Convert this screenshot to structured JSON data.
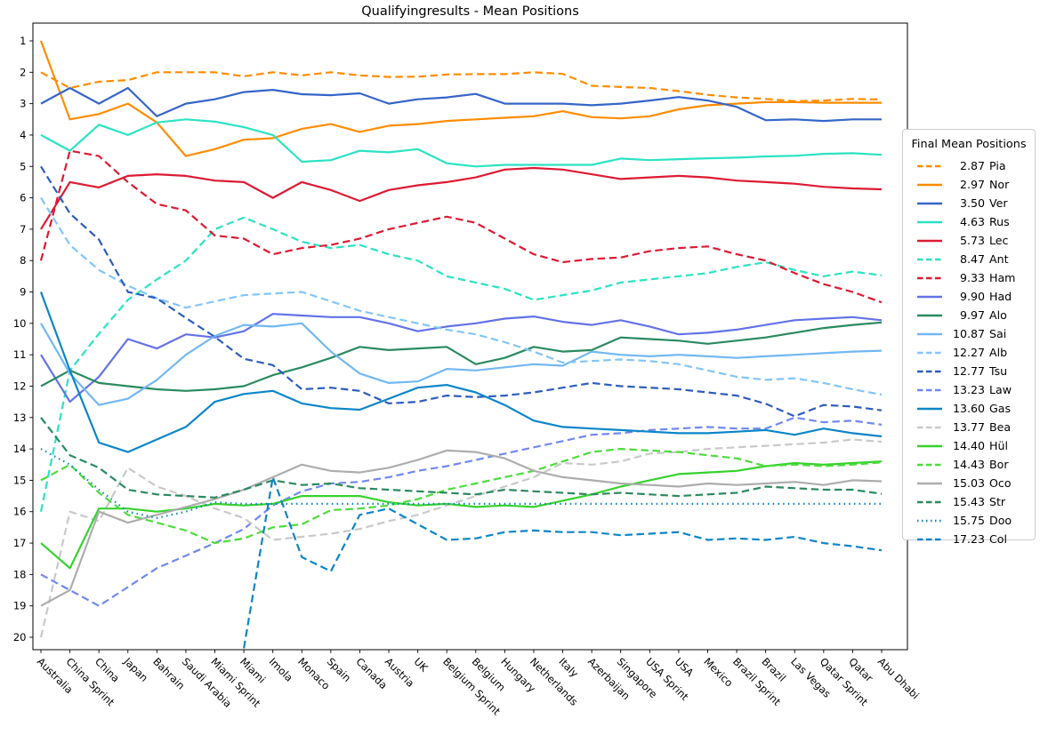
{
  "title": "Qualifyingresults - Mean Positions",
  "legend": {
    "title": "Final Mean Positions"
  },
  "chart_data": {
    "type": "line",
    "title": "Qualifyingresults - Mean Positions",
    "xlabel": "",
    "ylabel": "",
    "ylim": [
      1,
      20
    ],
    "yticks": [
      1,
      2,
      3,
      4,
      5,
      6,
      7,
      8,
      9,
      10,
      11,
      12,
      13,
      14,
      15,
      16,
      17,
      18,
      19,
      20
    ],
    "grid": false,
    "legend_position": "right-outside",
    "x_categories": [
      "Australia",
      "China Sprint",
      "China",
      "Japan",
      "Bahrain",
      "Saudi Arabia",
      "Miami Sprint",
      "Miami",
      "Imola",
      "Monaco",
      "Spain",
      "Canada",
      "Austria",
      "UK",
      "Belgium Sprint",
      "Belgium",
      "Hungary",
      "Netherlands",
      "Italy",
      "Azerbaijan",
      "Singapore",
      "USA Sprint",
      "USA",
      "Mexico",
      "Brazil Sprint",
      "Brazil",
      "Las Vegas",
      "Qatar Sprint",
      "Qatar",
      "Abu Dhabi"
    ],
    "series": [
      {
        "abbr": "Pia",
        "final_mean": "2.87",
        "color": "#ff8c00",
        "style": "dashed",
        "values": [
          2,
          2.5,
          2.3,
          2.25,
          2.0,
          2.0,
          2.0,
          2.13,
          2.0,
          2.1,
          2.0,
          2.1,
          2.15,
          2.14,
          2.07,
          2.06,
          2.06,
          2.0,
          2.05,
          2.43,
          2.47,
          2.5,
          2.6,
          2.72,
          2.8,
          2.85,
          2.92,
          2.9,
          2.85,
          2.87
        ]
      },
      {
        "abbr": "Nor",
        "final_mean": "2.97",
        "color": "#ff8c00",
        "style": "solid",
        "values": [
          1,
          3.5,
          3.33,
          3.0,
          3.6,
          4.67,
          4.45,
          4.15,
          4.1,
          3.8,
          3.65,
          3.9,
          3.7,
          3.65,
          3.55,
          3.5,
          3.45,
          3.4,
          3.24,
          3.43,
          3.47,
          3.4,
          3.18,
          3.05,
          3.0,
          2.95,
          2.95,
          2.97,
          2.97,
          2.97
        ]
      },
      {
        "abbr": "Ver",
        "final_mean": "3.50",
        "color": "#3565c8",
        "style": "solid",
        "values": [
          3,
          2.5,
          3.0,
          2.5,
          3.4,
          3.0,
          2.86,
          2.63,
          2.56,
          2.7,
          2.73,
          2.67,
          3.0,
          2.86,
          2.8,
          2.69,
          3.0,
          3.0,
          3.0,
          3.05,
          3.0,
          2.9,
          2.79,
          2.9,
          3.1,
          3.53,
          3.5,
          3.55,
          3.5,
          3.5
        ]
      },
      {
        "abbr": "Rus",
        "final_mean": "4.63",
        "color": "#2be3c3",
        "style": "solid",
        "values": [
          4,
          4.5,
          3.67,
          4.0,
          3.6,
          3.5,
          3.57,
          3.75,
          4.0,
          4.85,
          4.8,
          4.5,
          4.55,
          4.45,
          4.9,
          5.0,
          4.95,
          4.95,
          4.95,
          4.95,
          4.75,
          4.8,
          4.77,
          4.74,
          4.72,
          4.68,
          4.66,
          4.6,
          4.58,
          4.63
        ]
      },
      {
        "abbr": "Lec",
        "final_mean": "5.73",
        "color": "#dd1a33",
        "style": "solid",
        "values": [
          7,
          5.5,
          5.67,
          5.3,
          5.25,
          5.3,
          5.45,
          5.5,
          6.0,
          5.5,
          5.75,
          6.1,
          5.75,
          5.6,
          5.5,
          5.35,
          5.1,
          5.05,
          5.1,
          5.25,
          5.4,
          5.35,
          5.3,
          5.35,
          5.45,
          5.5,
          5.55,
          5.65,
          5.7,
          5.73
        ]
      },
      {
        "abbr": "Ant",
        "final_mean": "8.47",
        "color": "#2be3c3",
        "style": "dashed",
        "values": [
          16,
          11.5,
          10.33,
          9.25,
          8.6,
          8.0,
          7.0,
          6.63,
          7.0,
          7.4,
          7.6,
          7.5,
          7.8,
          8.0,
          8.5,
          8.7,
          8.9,
          9.25,
          9.1,
          8.95,
          8.7,
          8.6,
          8.5,
          8.4,
          8.2,
          8.05,
          8.3,
          8.5,
          8.35,
          8.47
        ]
      },
      {
        "abbr": "Ham",
        "final_mean": "9.33",
        "color": "#dd1a33",
        "style": "dashed",
        "values": [
          8,
          4.5,
          4.67,
          5.5,
          6.2,
          6.4,
          7.2,
          7.3,
          7.8,
          7.6,
          7.5,
          7.3,
          7.0,
          6.8,
          6.6,
          6.8,
          7.3,
          7.8,
          8.05,
          7.95,
          7.9,
          7.7,
          7.6,
          7.55,
          7.8,
          8.0,
          8.4,
          8.75,
          9.0,
          9.33
        ]
      },
      {
        "abbr": "Had",
        "final_mean": "9.90",
        "color": "#6272e8",
        "style": "solid",
        "values": [
          11,
          12.5,
          11.7,
          10.5,
          10.8,
          10.35,
          10.45,
          10.25,
          9.7,
          9.75,
          9.8,
          9.8,
          10.0,
          10.25,
          10.1,
          10.0,
          9.85,
          9.78,
          9.95,
          10.05,
          9.9,
          10.1,
          10.35,
          10.3,
          10.2,
          10.05,
          9.9,
          9.85,
          9.8,
          9.9
        ]
      },
      {
        "abbr": "Alo",
        "final_mean": "9.97",
        "color": "#2a8a60",
        "style": "solid",
        "values": [
          12,
          11.5,
          11.9,
          12.0,
          12.1,
          12.15,
          12.1,
          12.0,
          11.65,
          11.4,
          11.1,
          10.75,
          10.85,
          10.8,
          10.75,
          11.3,
          11.1,
          10.75,
          10.9,
          10.85,
          10.45,
          10.5,
          10.55,
          10.65,
          10.55,
          10.45,
          10.3,
          10.15,
          10.05,
          9.97
        ]
      },
      {
        "abbr": "Sai",
        "final_mean": "10.87",
        "color": "#72b8f3",
        "style": "solid",
        "values": [
          10,
          11.6,
          12.6,
          12.4,
          11.8,
          11.0,
          10.4,
          10.05,
          10.1,
          10.0,
          10.9,
          11.6,
          11.9,
          11.85,
          11.45,
          11.5,
          11.4,
          11.3,
          11.35,
          10.9,
          11.0,
          11.05,
          11.0,
          11.05,
          11.1,
          11.05,
          11.0,
          10.95,
          10.9,
          10.87
        ]
      },
      {
        "abbr": "Alb",
        "final_mean": "12.27",
        "color": "#82c5f8",
        "style": "dashed",
        "values": [
          6,
          7.5,
          8.3,
          8.8,
          9.2,
          9.5,
          9.3,
          9.1,
          9.05,
          9.0,
          9.3,
          9.6,
          9.8,
          10.0,
          10.2,
          10.35,
          10.6,
          10.9,
          11.25,
          11.2,
          11.15,
          11.2,
          11.3,
          11.5,
          11.7,
          11.8,
          11.75,
          11.9,
          12.1,
          12.27
        ]
      },
      {
        "abbr": "Tsu",
        "final_mean": "12.77",
        "color": "#2d5cbd",
        "style": "dashed",
        "values": [
          5,
          6.5,
          7.33,
          9.0,
          9.2,
          9.83,
          10.43,
          11.13,
          11.33,
          12.1,
          12.05,
          12.15,
          12.55,
          12.5,
          12.3,
          12.35,
          12.3,
          12.2,
          12.05,
          11.9,
          12.0,
          12.05,
          12.1,
          12.2,
          12.3,
          12.56,
          12.96,
          12.6,
          12.65,
          12.77
        ]
      },
      {
        "abbr": "Law",
        "final_mean": "13.23",
        "color": "#7188f0",
        "style": "dashed",
        "values": [
          18,
          18.5,
          19.0,
          18.4,
          17.8,
          17.4,
          17.0,
          16.55,
          15.8,
          15.35,
          15.1,
          15.05,
          14.9,
          14.7,
          14.55,
          14.35,
          14.15,
          13.95,
          13.75,
          13.55,
          13.5,
          13.4,
          13.35,
          13.3,
          13.35,
          13.35,
          13.0,
          13.15,
          13.1,
          13.23
        ]
      },
      {
        "abbr": "Gas",
        "final_mean": "13.60",
        "color": "#0b85c8",
        "style": "solid",
        "values": [
          9,
          11.5,
          13.8,
          14.1,
          13.7,
          13.3,
          12.5,
          12.25,
          12.15,
          12.55,
          12.7,
          12.75,
          12.4,
          12.05,
          11.96,
          12.2,
          12.6,
          13.1,
          13.3,
          13.35,
          13.4,
          13.45,
          13.5,
          13.5,
          13.45,
          13.4,
          13.55,
          13.35,
          13.5,
          13.6
        ]
      },
      {
        "abbr": "Bea",
        "final_mean": "13.77",
        "color": "#c9c9c9",
        "style": "dashed",
        "values": [
          20,
          16,
          16.3,
          14.6,
          15.2,
          15.5,
          15.9,
          16.2,
          16.9,
          16.8,
          16.7,
          16.55,
          16.3,
          16.1,
          15.8,
          15.5,
          15.2,
          14.9,
          14.45,
          14.5,
          14.4,
          14.15,
          14.1,
          14.0,
          13.95,
          13.9,
          13.85,
          13.8,
          13.7,
          13.77
        ]
      },
      {
        "abbr": "Hül",
        "final_mean": "14.40",
        "color": "#35d22b",
        "style": "solid",
        "values": [
          17,
          17.8,
          15.9,
          15.9,
          16.0,
          15.9,
          15.75,
          15.8,
          15.75,
          15.5,
          15.5,
          15.5,
          15.7,
          15.8,
          15.75,
          15.85,
          15.8,
          15.85,
          15.65,
          15.45,
          15.2,
          15.0,
          14.8,
          14.75,
          14.7,
          14.55,
          14.45,
          14.5,
          14.45,
          14.4
        ]
      },
      {
        "abbr": "Bor",
        "final_mean": "14.43",
        "color": "#4cdc3c",
        "style": "dashed",
        "values": [
          15,
          14.5,
          15.4,
          16.1,
          16.35,
          16.6,
          17.0,
          16.85,
          16.5,
          16.4,
          15.95,
          15.9,
          15.8,
          15.6,
          15.3,
          15.1,
          14.9,
          14.7,
          14.4,
          14.1,
          14.0,
          14.05,
          14.1,
          14.2,
          14.3,
          14.55,
          14.5,
          14.55,
          14.5,
          14.43
        ]
      },
      {
        "abbr": "Oco",
        "final_mean": "15.03",
        "color": "#adadad",
        "style": "solid",
        "values": [
          19,
          18.5,
          16.0,
          16.35,
          16.1,
          15.85,
          15.6,
          15.3,
          14.9,
          14.5,
          14.7,
          14.75,
          14.6,
          14.35,
          14.05,
          14.1,
          14.3,
          14.7,
          14.9,
          15.0,
          15.1,
          15.15,
          15.2,
          15.1,
          15.15,
          15.1,
          15.05,
          15.15,
          15.0,
          15.03
        ]
      },
      {
        "abbr": "Str",
        "final_mean": "15.43",
        "color": "#2a8a60",
        "style": "dashed",
        "values": [
          13,
          14.2,
          14.6,
          15.3,
          15.45,
          15.5,
          15.55,
          15.3,
          15.0,
          15.15,
          15.1,
          15.25,
          15.3,
          15.35,
          15.4,
          15.45,
          15.3,
          15.35,
          15.4,
          15.45,
          15.4,
          15.45,
          15.5,
          15.45,
          15.4,
          15.2,
          15.25,
          15.3,
          15.3,
          15.43
        ]
      },
      {
        "abbr": "Doo",
        "final_mean": "15.75",
        "color": "#0b85c8",
        "style": "dotted",
        "values": [
          14,
          14.5,
          15.3,
          16.0,
          16.2,
          16.0,
          15.7,
          15.75,
          15.75,
          15.75,
          15.75,
          15.75,
          15.75,
          15.75,
          15.75,
          15.75,
          15.75,
          15.75,
          15.75,
          15.75,
          15.75,
          15.75,
          15.75,
          15.75,
          15.75,
          15.75,
          15.75,
          15.75,
          15.75,
          15.75
        ]
      },
      {
        "abbr": "Col",
        "final_mean": "17.23",
        "color": "#0b85c8",
        "style": "dashed",
        "values": [
          null,
          null,
          null,
          null,
          null,
          null,
          null,
          20.35,
          14.9,
          17.45,
          17.9,
          16.1,
          15.9,
          16.4,
          16.9,
          16.85,
          16.65,
          16.6,
          16.65,
          16.65,
          16.75,
          16.7,
          16.65,
          16.9,
          16.85,
          16.9,
          16.8,
          17.0,
          17.1,
          17.23
        ]
      }
    ]
  }
}
